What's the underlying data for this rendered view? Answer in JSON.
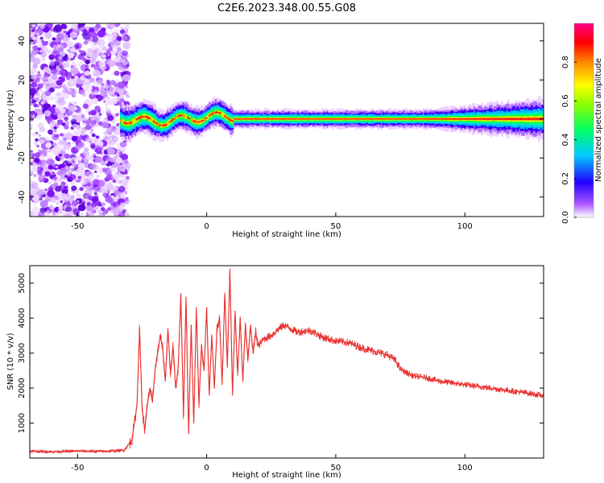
{
  "title": "C2E6.2023.348.00.55.G08",
  "chart_data": [
    {
      "type": "heatmap",
      "xlabel": "Height of straight line (km)",
      "ylabel": "Frequency (Hz)",
      "xlim": [
        -68.5,
        130.5
      ],
      "ylim": [
        -50,
        49
      ],
      "xticks": [
        -50,
        0,
        50,
        100
      ],
      "yticks": [
        -40,
        -20,
        0,
        20,
        40
      ],
      "grid": false,
      "colorbar": {
        "label": "Normalized spectral amplitude",
        "range": [
          0,
          1
        ],
        "ticks": [
          0.0,
          0.2,
          0.4,
          0.6,
          0.8
        ],
        "colormap": [
          "#ffffff",
          "#8800ff",
          "#0000ff",
          "#00ffff",
          "#00ff00",
          "#ffff00",
          "#ff8800",
          "#ff0000",
          "#ff00aa"
        ]
      },
      "regions": [
        {
          "x": [
            -68.5,
            -32
          ],
          "frequency": [
            -50,
            49
          ],
          "amplitude": "noise, 0.1-0.3"
        },
        {
          "x": [
            -32,
            10
          ],
          "frequency_center": "approx. 0, wandering -4 to 4",
          "amplitude": "0.3-1.0"
        },
        {
          "x": [
            10,
            130.5
          ],
          "frequency_center": 0,
          "amplitude": "approx. 1.0, widening to +/-5 Hz above 90 km"
        }
      ]
    },
    {
      "type": "line",
      "xlabel": "Height of straight line (km)",
      "ylabel": "SNR (10 * v/v)",
      "xlim": [
        -68.5,
        130.5
      ],
      "ylim": [
        0,
        5500
      ],
      "xticks": [
        -50,
        0,
        50,
        100
      ],
      "yticks": [
        1000,
        2000,
        3000,
        4000,
        5000
      ],
      "grid": false,
      "color": "#e8312f",
      "x": [
        -68.5,
        -60,
        -50,
        -40,
        -32,
        -29,
        -27,
        -26,
        -25,
        -24,
        -23,
        -22,
        -21,
        -20,
        -19,
        -18,
        -17,
        -16,
        -15,
        -14,
        -13,
        -12,
        -11,
        -10,
        -9,
        -8,
        -7,
        -6,
        -5,
        -4,
        -3,
        -2,
        -1,
        0,
        1,
        2,
        3,
        4,
        5,
        6,
        7,
        8,
        9,
        10,
        11,
        12,
        13,
        14,
        15,
        16,
        17,
        18,
        19,
        20,
        22,
        25,
        28,
        30,
        35,
        40,
        45,
        50,
        55,
        60,
        65,
        70,
        73,
        75,
        77,
        80,
        85,
        90,
        95,
        100,
        105,
        110,
        115,
        120,
        125,
        130.5
      ],
      "y": [
        200,
        180,
        200,
        190,
        220,
        500,
        1500,
        3700,
        1400,
        800,
        1500,
        2000,
        1600,
        2500,
        3000,
        3500,
        3100,
        2200,
        3700,
        2400,
        3200,
        2000,
        2600,
        4700,
        1200,
        4600,
        700,
        3800,
        1000,
        4300,
        1500,
        3200,
        2500,
        4300,
        1800,
        3500,
        2000,
        3700,
        4000,
        2100,
        4700,
        2600,
        5400,
        1800,
        4200,
        2400,
        4000,
        2200,
        3800,
        2800,
        3800,
        3000,
        3600,
        3200,
        3400,
        3500,
        3700,
        3800,
        3600,
        3650,
        3450,
        3350,
        3300,
        3150,
        3050,
        2950,
        2800,
        2550,
        2450,
        2350,
        2300,
        2200,
        2150,
        2100,
        2050,
        2000,
        1950,
        1900,
        1850,
        1780
      ]
    }
  ]
}
